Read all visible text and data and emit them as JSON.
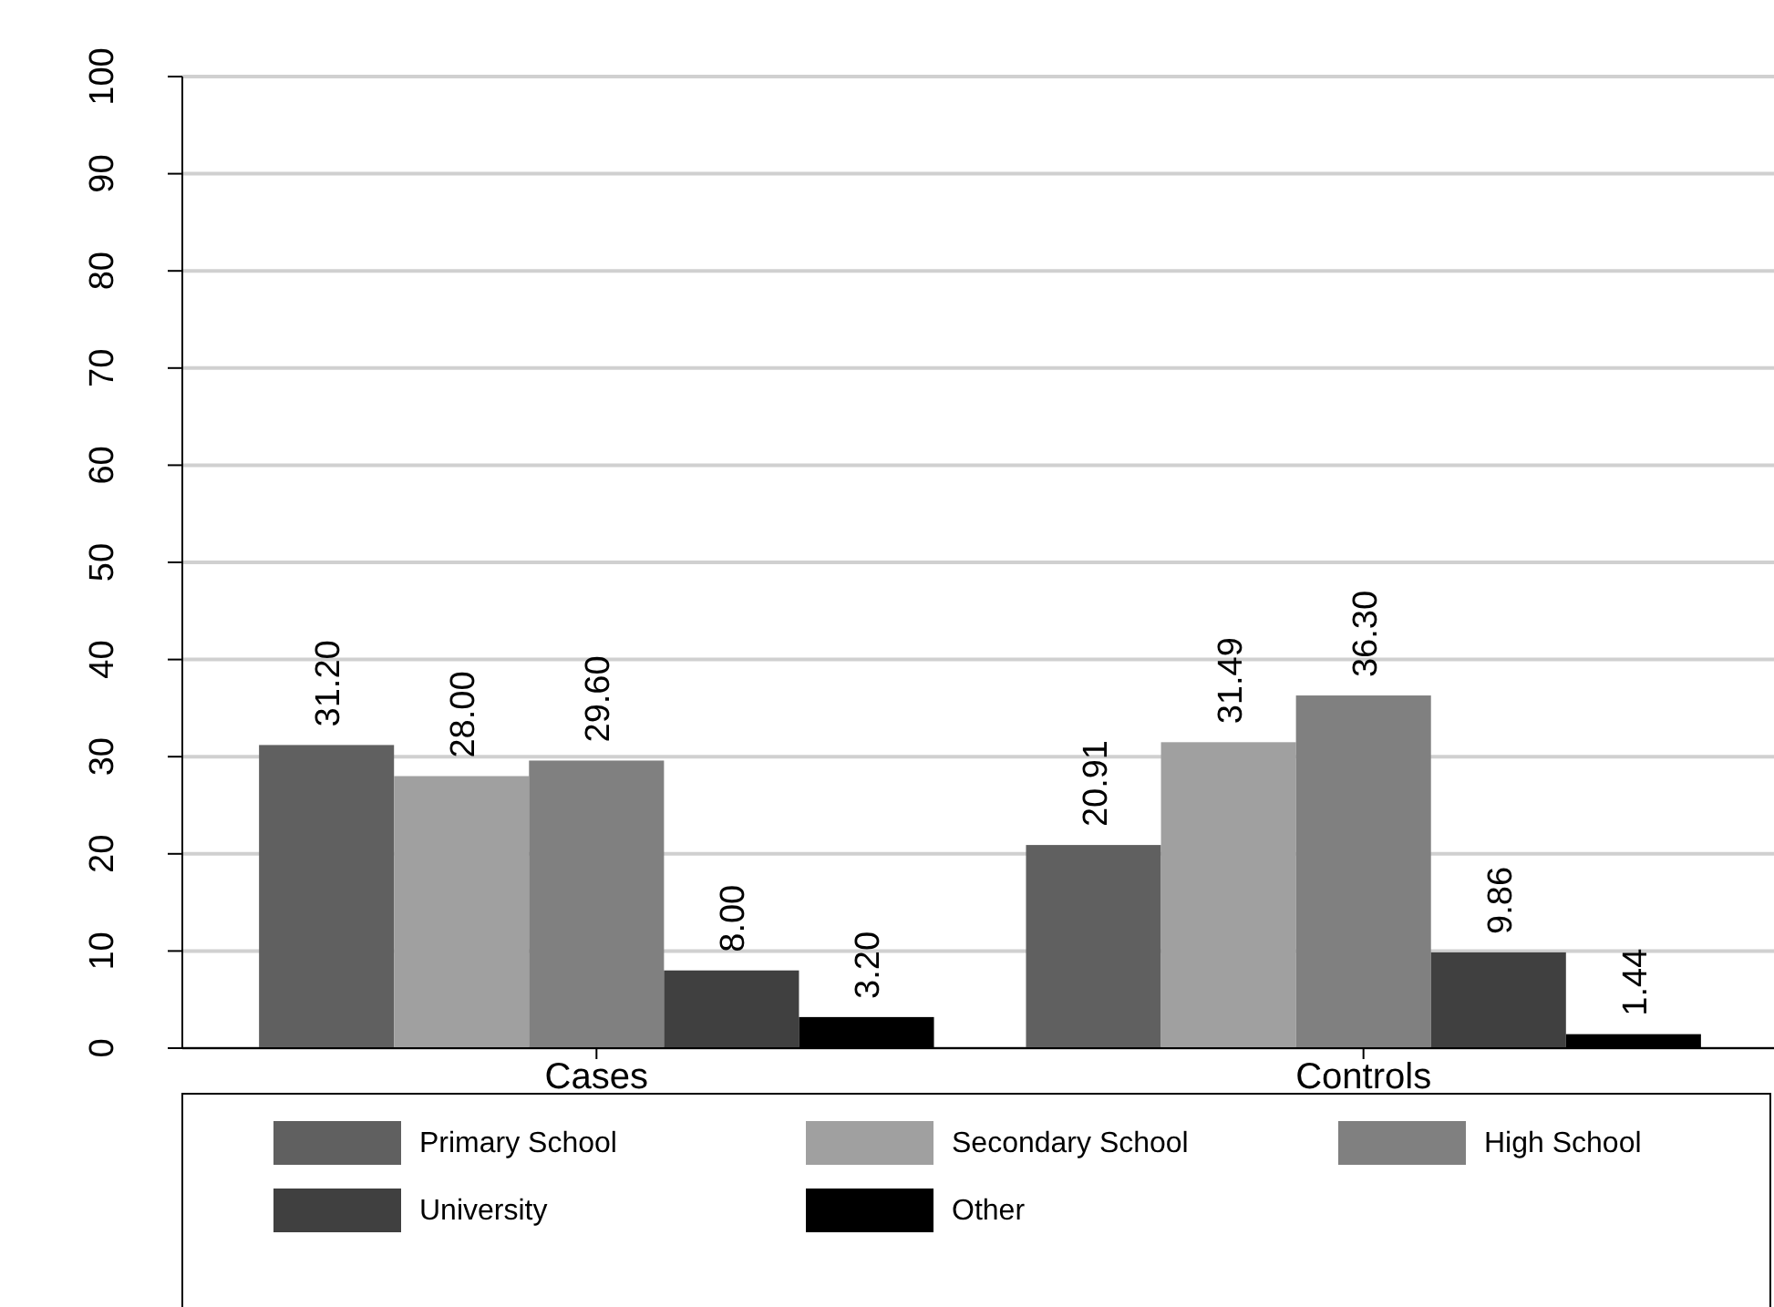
{
  "chart_data": {
    "type": "bar",
    "categories": [
      "Cases",
      "Controls"
    ],
    "series": [
      {
        "name": "Primary School",
        "color": "#606060",
        "values": [
          31.2,
          20.91
        ],
        "value_labels": [
          "31.20",
          "20.91"
        ]
      },
      {
        "name": "Secondary School",
        "color": "#a0a0a0",
        "values": [
          28.0,
          31.49
        ],
        "value_labels": [
          "28.00",
          "31.49"
        ]
      },
      {
        "name": "High School",
        "color": "#808080",
        "values": [
          29.6,
          36.3
        ],
        "value_labels": [
          "29.60",
          "36.30"
        ]
      },
      {
        "name": "University",
        "color": "#404040",
        "values": [
          8.0,
          9.86
        ],
        "value_labels": [
          "8.00",
          "9.86"
        ]
      },
      {
        "name": "Other",
        "color": "#000000",
        "values": [
          3.2,
          1.44
        ],
        "value_labels": [
          "3.20",
          "1.44"
        ]
      }
    ],
    "ylim": [
      0,
      100
    ],
    "yticks": [
      0,
      10,
      20,
      30,
      40,
      50,
      60,
      70,
      80,
      90,
      100
    ],
    "grid": "y",
    "legend": "bottom"
  }
}
